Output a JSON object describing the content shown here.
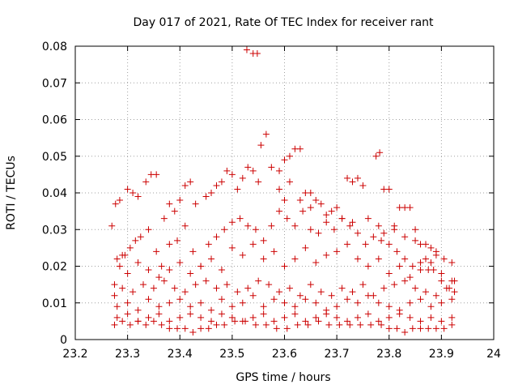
{
  "chart_data": {
    "type": "scatter",
    "title": "Day 017 of 2021, Rate Of TEC Index for receiver rant",
    "xlabel": "GPS time / hours",
    "ylabel": "ROTI / TECUs",
    "xlim": [
      23.2,
      24
    ],
    "ylim": [
      0,
      0.08
    ],
    "x_ticks": [
      "23.2",
      "23.3",
      "23.4",
      "23.5",
      "23.6",
      "23.7",
      "23.8",
      "23.9",
      "24"
    ],
    "y_ticks": [
      "0",
      "0.01",
      "0.02",
      "0.03",
      "0.04",
      "0.05",
      "0.06",
      "0.07",
      "0.08"
    ],
    "grid": true,
    "marker": "+",
    "color": "#cc0000",
    "points": [
      [
        23.27,
        0.031
      ],
      [
        23.277,
        0.037
      ],
      [
        23.285,
        0.038
      ],
      [
        23.29,
        0.023
      ],
      [
        23.3,
        0.041
      ],
      [
        23.31,
        0.04
      ],
      [
        23.32,
        0.039
      ],
      [
        23.335,
        0.043
      ],
      [
        23.345,
        0.045
      ],
      [
        23.355,
        0.045
      ],
      [
        23.37,
        0.033
      ],
      [
        23.38,
        0.037
      ],
      [
        23.39,
        0.035
      ],
      [
        23.4,
        0.038
      ],
      [
        23.41,
        0.042
      ],
      [
        23.42,
        0.043
      ],
      [
        23.43,
        0.037
      ],
      [
        23.45,
        0.039
      ],
      [
        23.46,
        0.04
      ],
      [
        23.47,
        0.042
      ],
      [
        23.48,
        0.043
      ],
      [
        23.49,
        0.046
      ],
      [
        23.5,
        0.045
      ],
      [
        23.51,
        0.041
      ],
      [
        23.52,
        0.044
      ],
      [
        23.53,
        0.047
      ],
      [
        23.54,
        0.046
      ],
      [
        23.55,
        0.043
      ],
      [
        23.555,
        0.053
      ],
      [
        23.565,
        0.056
      ],
      [
        23.575,
        0.047
      ],
      [
        23.59,
        0.046
      ],
      [
        23.6,
        0.049
      ],
      [
        23.61,
        0.05
      ],
      [
        23.62,
        0.052
      ],
      [
        23.63,
        0.052
      ],
      [
        23.64,
        0.04
      ],
      [
        23.65,
        0.04
      ],
      [
        23.66,
        0.038
      ],
      [
        23.68,
        0.034
      ],
      [
        23.7,
        0.036
      ],
      [
        23.72,
        0.044
      ],
      [
        23.73,
        0.043
      ],
      [
        23.74,
        0.044
      ],
      [
        23.75,
        0.042
      ],
      [
        23.775,
        0.05
      ],
      [
        23.782,
        0.051
      ],
      [
        23.79,
        0.041
      ],
      [
        23.8,
        0.041
      ],
      [
        23.81,
        0.03
      ],
      [
        23.82,
        0.036
      ],
      [
        23.83,
        0.036
      ],
      [
        23.84,
        0.036
      ],
      [
        23.85,
        0.03
      ],
      [
        23.86,
        0.026
      ],
      [
        23.87,
        0.026
      ],
      [
        23.88,
        0.025
      ],
      [
        23.89,
        0.023
      ],
      [
        23.528,
        0.079
      ],
      [
        23.54,
        0.078
      ],
      [
        23.548,
        0.078
      ],
      [
        23.275,
        0.015
      ],
      [
        23.285,
        0.02
      ],
      [
        23.295,
        0.023
      ],
      [
        23.305,
        0.025
      ],
      [
        23.315,
        0.027
      ],
      [
        23.325,
        0.028
      ],
      [
        23.34,
        0.03
      ],
      [
        23.355,
        0.024
      ],
      [
        23.365,
        0.02
      ],
      [
        23.38,
        0.026
      ],
      [
        23.395,
        0.027
      ],
      [
        23.41,
        0.031
      ],
      [
        23.425,
        0.024
      ],
      [
        23.44,
        0.02
      ],
      [
        23.455,
        0.026
      ],
      [
        23.47,
        0.028
      ],
      [
        23.485,
        0.03
      ],
      [
        23.5,
        0.032
      ],
      [
        23.515,
        0.033
      ],
      [
        23.53,
        0.031
      ],
      [
        23.545,
        0.03
      ],
      [
        23.56,
        0.027
      ],
      [
        23.575,
        0.031
      ],
      [
        23.59,
        0.035
      ],
      [
        23.605,
        0.033
      ],
      [
        23.62,
        0.031
      ],
      [
        23.635,
        0.035
      ],
      [
        23.65,
        0.03
      ],
      [
        23.665,
        0.029
      ],
      [
        23.68,
        0.032
      ],
      [
        23.695,
        0.03
      ],
      [
        23.71,
        0.033
      ],
      [
        23.725,
        0.031
      ],
      [
        23.74,
        0.029
      ],
      [
        23.755,
        0.026
      ],
      [
        23.77,
        0.028
      ],
      [
        23.785,
        0.027
      ],
      [
        23.8,
        0.026
      ],
      [
        23.815,
        0.024
      ],
      [
        23.83,
        0.022
      ],
      [
        23.845,
        0.02
      ],
      [
        23.86,
        0.021
      ],
      [
        23.875,
        0.019
      ],
      [
        23.89,
        0.024
      ],
      [
        23.905,
        0.022
      ],
      [
        23.92,
        0.021
      ],
      [
        23.28,
        0.022
      ],
      [
        23.3,
        0.018
      ],
      [
        23.32,
        0.021
      ],
      [
        23.34,
        0.019
      ],
      [
        23.36,
        0.017
      ],
      [
        23.38,
        0.019
      ],
      [
        23.4,
        0.021
      ],
      [
        23.42,
        0.018
      ],
      [
        23.44,
        0.02
      ],
      [
        23.46,
        0.022
      ],
      [
        23.48,
        0.019
      ],
      [
        23.5,
        0.025
      ],
      [
        23.52,
        0.023
      ],
      [
        23.54,
        0.026
      ],
      [
        23.56,
        0.022
      ],
      [
        23.58,
        0.024
      ],
      [
        23.6,
        0.02
      ],
      [
        23.62,
        0.022
      ],
      [
        23.64,
        0.025
      ],
      [
        23.66,
        0.021
      ],
      [
        23.68,
        0.023
      ],
      [
        23.7,
        0.024
      ],
      [
        23.72,
        0.026
      ],
      [
        23.74,
        0.022
      ],
      [
        23.76,
        0.02
      ],
      [
        23.78,
        0.022
      ],
      [
        23.8,
        0.018
      ],
      [
        23.82,
        0.02
      ],
      [
        23.84,
        0.017
      ],
      [
        23.86,
        0.019
      ],
      [
        23.88,
        0.021
      ],
      [
        23.9,
        0.018
      ],
      [
        23.92,
        0.016
      ],
      [
        23.275,
        0.012
      ],
      [
        23.29,
        0.014
      ],
      [
        23.31,
        0.013
      ],
      [
        23.33,
        0.015
      ],
      [
        23.35,
        0.014
      ],
      [
        23.37,
        0.016
      ],
      [
        23.39,
        0.014
      ],
      [
        23.41,
        0.013
      ],
      [
        23.43,
        0.015
      ],
      [
        23.45,
        0.016
      ],
      [
        23.47,
        0.014
      ],
      [
        23.49,
        0.015
      ],
      [
        23.51,
        0.013
      ],
      [
        23.53,
        0.014
      ],
      [
        23.55,
        0.016
      ],
      [
        23.57,
        0.015
      ],
      [
        23.59,
        0.013
      ],
      [
        23.61,
        0.014
      ],
      [
        23.63,
        0.012
      ],
      [
        23.65,
        0.015
      ],
      [
        23.67,
        0.013
      ],
      [
        23.69,
        0.012
      ],
      [
        23.71,
        0.014
      ],
      [
        23.73,
        0.013
      ],
      [
        23.75,
        0.015
      ],
      [
        23.77,
        0.012
      ],
      [
        23.79,
        0.014
      ],
      [
        23.81,
        0.015
      ],
      [
        23.83,
        0.016
      ],
      [
        23.85,
        0.014
      ],
      [
        23.87,
        0.013
      ],
      [
        23.89,
        0.012
      ],
      [
        23.91,
        0.014
      ],
      [
        23.925,
        0.013
      ],
      [
        23.28,
        0.009
      ],
      [
        23.3,
        0.01
      ],
      [
        23.32,
        0.008
      ],
      [
        23.34,
        0.011
      ],
      [
        23.36,
        0.009
      ],
      [
        23.38,
        0.01
      ],
      [
        23.4,
        0.011
      ],
      [
        23.42,
        0.009
      ],
      [
        23.44,
        0.01
      ],
      [
        23.46,
        0.008
      ],
      [
        23.48,
        0.011
      ],
      [
        23.5,
        0.009
      ],
      [
        23.52,
        0.01
      ],
      [
        23.54,
        0.012
      ],
      [
        23.56,
        0.009
      ],
      [
        23.58,
        0.011
      ],
      [
        23.6,
        0.01
      ],
      [
        23.62,
        0.009
      ],
      [
        23.64,
        0.011
      ],
      [
        23.66,
        0.01
      ],
      [
        23.68,
        0.008
      ],
      [
        23.7,
        0.009
      ],
      [
        23.72,
        0.011
      ],
      [
        23.74,
        0.01
      ],
      [
        23.76,
        0.012
      ],
      [
        23.78,
        0.01
      ],
      [
        23.8,
        0.009
      ],
      [
        23.82,
        0.008
      ],
      [
        23.84,
        0.01
      ],
      [
        23.86,
        0.011
      ],
      [
        23.88,
        0.009
      ],
      [
        23.9,
        0.01
      ],
      [
        23.92,
        0.011
      ],
      [
        23.28,
        0.006
      ],
      [
        23.3,
        0.007
      ],
      [
        23.32,
        0.005
      ],
      [
        23.34,
        0.006
      ],
      [
        23.36,
        0.007
      ],
      [
        23.38,
        0.005
      ],
      [
        23.4,
        0.006
      ],
      [
        23.42,
        0.007
      ],
      [
        23.44,
        0.006
      ],
      [
        23.46,
        0.005
      ],
      [
        23.48,
        0.007
      ],
      [
        23.5,
        0.006
      ],
      [
        23.52,
        0.005
      ],
      [
        23.54,
        0.006
      ],
      [
        23.56,
        0.007
      ],
      [
        23.58,
        0.005
      ],
      [
        23.6,
        0.006
      ],
      [
        23.62,
        0.007
      ],
      [
        23.64,
        0.005
      ],
      [
        23.66,
        0.006
      ],
      [
        23.68,
        0.007
      ],
      [
        23.7,
        0.006
      ],
      [
        23.72,
        0.005
      ],
      [
        23.74,
        0.006
      ],
      [
        23.76,
        0.007
      ],
      [
        23.78,
        0.005
      ],
      [
        23.8,
        0.006
      ],
      [
        23.82,
        0.007
      ],
      [
        23.84,
        0.006
      ],
      [
        23.86,
        0.005
      ],
      [
        23.88,
        0.006
      ],
      [
        23.9,
        0.005
      ],
      [
        23.92,
        0.006
      ],
      [
        23.275,
        0.004
      ],
      [
        23.29,
        0.005
      ],
      [
        23.305,
        0.004
      ],
      [
        23.32,
        0.005
      ],
      [
        23.335,
        0.004
      ],
      [
        23.35,
        0.005
      ],
      [
        23.365,
        0.004
      ],
      [
        23.38,
        0.003
      ],
      [
        23.395,
        0.003
      ],
      [
        23.41,
        0.003
      ],
      [
        23.425,
        0.002
      ],
      [
        23.44,
        0.003
      ],
      [
        23.455,
        0.003
      ],
      [
        23.47,
        0.004
      ],
      [
        23.485,
        0.004
      ],
      [
        23.505,
        0.005
      ],
      [
        23.525,
        0.005
      ],
      [
        23.545,
        0.004
      ],
      [
        23.565,
        0.004
      ],
      [
        23.585,
        0.003
      ],
      [
        23.605,
        0.003
      ],
      [
        23.625,
        0.004
      ],
      [
        23.645,
        0.004
      ],
      [
        23.665,
        0.005
      ],
      [
        23.685,
        0.004
      ],
      [
        23.705,
        0.004
      ],
      [
        23.725,
        0.004
      ],
      [
        23.745,
        0.004
      ],
      [
        23.765,
        0.004
      ],
      [
        23.785,
        0.004
      ],
      [
        23.8,
        0.003
      ],
      [
        23.815,
        0.003
      ],
      [
        23.83,
        0.002
      ],
      [
        23.845,
        0.003
      ],
      [
        23.86,
        0.003
      ],
      [
        23.875,
        0.003
      ],
      [
        23.89,
        0.003
      ],
      [
        23.905,
        0.003
      ],
      [
        23.92,
        0.004
      ],
      [
        23.59,
        0.041
      ],
      [
        23.6,
        0.038
      ],
      [
        23.61,
        0.043
      ],
      [
        23.63,
        0.038
      ],
      [
        23.65,
        0.036
      ],
      [
        23.67,
        0.037
      ],
      [
        23.69,
        0.035
      ],
      [
        23.71,
        0.033
      ],
      [
        23.73,
        0.032
      ],
      [
        23.76,
        0.033
      ],
      [
        23.78,
        0.031
      ],
      [
        23.79,
        0.029
      ],
      [
        23.81,
        0.031
      ],
      [
        23.83,
        0.028
      ],
      [
        23.85,
        0.027
      ],
      [
        23.87,
        0.022
      ],
      [
        23.885,
        0.019
      ],
      [
        23.9,
        0.016
      ],
      [
        23.915,
        0.014
      ],
      [
        23.925,
        0.016
      ]
    ]
  }
}
